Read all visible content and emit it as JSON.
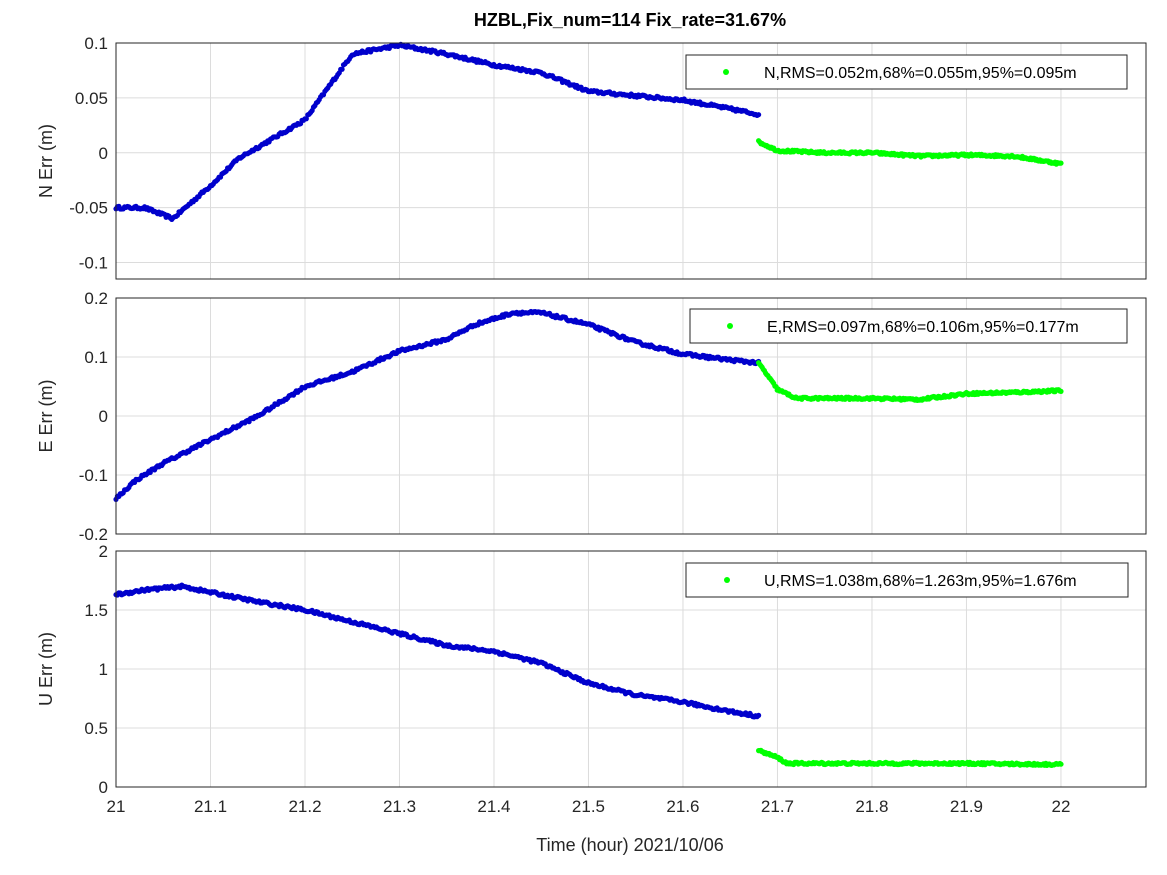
{
  "title": "HZBL,Fix_num=114 Fix_rate=31.67%",
  "xlabel": "Time (hour)  2021/10/06",
  "x_ticks": [
    "21",
    "21.1",
    "21.2",
    "21.3",
    "21.4",
    "21.5",
    "21.6",
    "21.7",
    "21.8",
    "21.9",
    "22"
  ],
  "colors": {
    "float": "#0000cc",
    "fix": "#00ff00"
  },
  "chart_data": [
    {
      "type": "scatter",
      "ylabel": "N Err (m)",
      "xlim": [
        21,
        22.09
      ],
      "ylim": [
        -0.115,
        0.1
      ],
      "y_ticks": [
        "0.1",
        "0.05",
        "0",
        "-0.05",
        "-0.1"
      ],
      "legend": "N,RMS=0.052m,68%=0.055m,95%=0.095m",
      "float_profile": [
        [
          21.0,
          -0.05
        ],
        [
          21.03,
          -0.05
        ],
        [
          21.06,
          -0.06
        ],
        [
          21.1,
          -0.03
        ],
        [
          21.13,
          -0.005
        ],
        [
          21.16,
          0.01
        ],
        [
          21.2,
          0.03
        ],
        [
          21.25,
          0.09
        ],
        [
          21.3,
          0.098
        ],
        [
          21.35,
          0.09
        ],
        [
          21.4,
          0.08
        ],
        [
          21.45,
          0.073
        ],
        [
          21.5,
          0.056
        ],
        [
          21.55,
          0.052
        ],
        [
          21.6,
          0.048
        ],
        [
          21.65,
          0.04
        ],
        [
          21.68,
          0.035
        ]
      ],
      "fix_profile": [
        [
          21.68,
          0.01
        ],
        [
          21.7,
          0.002
        ],
        [
          21.75,
          0.0
        ],
        [
          21.8,
          0.0
        ],
        [
          21.85,
          -0.003
        ],
        [
          21.9,
          -0.002
        ],
        [
          21.95,
          -0.003
        ],
        [
          22.0,
          -0.01
        ]
      ]
    },
    {
      "type": "scatter",
      "ylabel": "E Err (m)",
      "xlim": [
        21,
        22.09
      ],
      "ylim": [
        -0.2,
        0.2
      ],
      "y_ticks": [
        "0.2",
        "0.1",
        "0",
        "-0.1",
        "-0.2"
      ],
      "legend": "E,RMS=0.097m,68%=0.106m,95%=0.177m",
      "float_profile": [
        [
          21.0,
          -0.14
        ],
        [
          21.02,
          -0.11
        ],
        [
          21.05,
          -0.08
        ],
        [
          21.1,
          -0.04
        ],
        [
          21.15,
          0.0
        ],
        [
          21.2,
          0.05
        ],
        [
          21.25,
          0.075
        ],
        [
          21.3,
          0.11
        ],
        [
          21.35,
          0.13
        ],
        [
          21.38,
          0.155
        ],
        [
          21.42,
          0.175
        ],
        [
          21.45,
          0.175
        ],
        [
          21.5,
          0.155
        ],
        [
          21.55,
          0.125
        ],
        [
          21.6,
          0.105
        ],
        [
          21.65,
          0.095
        ],
        [
          21.68,
          0.09
        ]
      ],
      "fix_profile": [
        [
          21.68,
          0.09
        ],
        [
          21.7,
          0.045
        ],
        [
          21.72,
          0.03
        ],
        [
          21.8,
          0.03
        ],
        [
          21.85,
          0.028
        ],
        [
          21.9,
          0.038
        ],
        [
          21.95,
          0.04
        ],
        [
          22.0,
          0.043
        ]
      ]
    },
    {
      "type": "scatter",
      "ylabel": "U Err (m)",
      "xlim": [
        21,
        22.09
      ],
      "ylim": [
        0,
        2
      ],
      "y_ticks": [
        "2",
        "1.5",
        "1",
        "0.5",
        "0"
      ],
      "legend": "U,RMS=1.038m,68%=1.263m,95%=1.676m",
      "float_profile": [
        [
          21.0,
          1.63
        ],
        [
          21.03,
          1.67
        ],
        [
          21.07,
          1.7
        ],
        [
          21.1,
          1.65
        ],
        [
          21.15,
          1.57
        ],
        [
          21.2,
          1.5
        ],
        [
          21.25,
          1.4
        ],
        [
          21.3,
          1.3
        ],
        [
          21.35,
          1.2
        ],
        [
          21.4,
          1.15
        ],
        [
          21.45,
          1.05
        ],
        [
          21.5,
          0.88
        ],
        [
          21.55,
          0.78
        ],
        [
          21.6,
          0.72
        ],
        [
          21.65,
          0.64
        ],
        [
          21.68,
          0.6
        ]
      ],
      "fix_profile": [
        [
          21.68,
          0.31
        ],
        [
          21.7,
          0.25
        ],
        [
          21.71,
          0.2
        ],
        [
          21.8,
          0.2
        ],
        [
          21.9,
          0.2
        ],
        [
          22.0,
          0.19
        ]
      ]
    }
  ]
}
